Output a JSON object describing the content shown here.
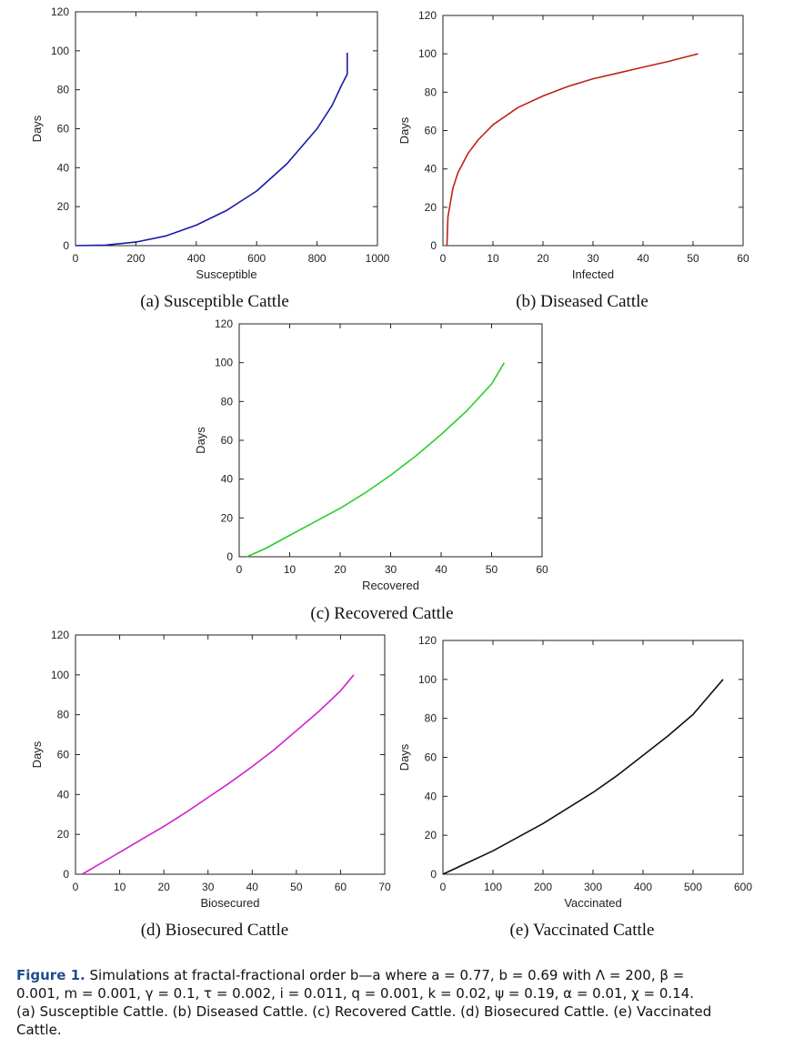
{
  "chart_data": [
    {
      "id": "a",
      "type": "line",
      "xlabel": "Susceptible",
      "ylabel": "Days",
      "xlim": [
        0,
        1000
      ],
      "ylim": [
        0,
        120
      ],
      "xticks": [
        0,
        200,
        400,
        600,
        800,
        1000
      ],
      "yticks": [
        0,
        20,
        40,
        60,
        80,
        100,
        120
      ],
      "color": "#1a1aa8",
      "series": [
        {
          "name": "Susceptible",
          "x": [
            0,
            100,
            200,
            300,
            400,
            500,
            600,
            700,
            800,
            850,
            880,
            900,
            900
          ],
          "y": [
            0,
            0.3,
            1.8,
            5,
            10.5,
            18,
            28,
            42,
            60,
            72,
            82,
            88,
            99
          ]
        }
      ],
      "caption": "(a) Susceptible Cattle"
    },
    {
      "id": "b",
      "type": "line",
      "xlabel": "Infected",
      "ylabel": "Days",
      "xlim": [
        0,
        60
      ],
      "ylim": [
        0,
        120
      ],
      "xticks": [
        0,
        10,
        20,
        30,
        40,
        50,
        60
      ],
      "yticks": [
        0,
        20,
        40,
        60,
        80,
        100,
        120
      ],
      "color": "#c0201a",
      "series": [
        {
          "name": "Infected",
          "x": [
            0.8,
            1,
            2,
            3,
            5,
            7,
            10,
            15,
            20,
            25,
            30,
            35,
            40,
            45,
            51
          ],
          "y": [
            0,
            15,
            30,
            38,
            48,
            55,
            63,
            72,
            78,
            83,
            87,
            90,
            93,
            96,
            100
          ]
        }
      ],
      "caption": "(b) Diseased Cattle"
    },
    {
      "id": "c",
      "type": "line",
      "xlabel": "Recovered",
      "ylabel": "Days",
      "xlim": [
        0,
        60
      ],
      "ylim": [
        0,
        120
      ],
      "xticks": [
        0,
        10,
        20,
        30,
        40,
        50,
        60
      ],
      "yticks": [
        0,
        20,
        40,
        60,
        80,
        100,
        120
      ],
      "color": "#2ecc2e",
      "series": [
        {
          "name": "Recovered",
          "x": [
            1.5,
            5,
            10,
            15,
            20,
            25,
            30,
            35,
            40,
            45,
            50,
            52.5
          ],
          "y": [
            0,
            4,
            11,
            18,
            25,
            33,
            42,
            52,
            63,
            75,
            89,
            100
          ]
        }
      ],
      "caption": "(c) Recovered Cattle"
    },
    {
      "id": "d",
      "type": "line",
      "xlabel": "Biosecured",
      "ylabel": "Days",
      "xlim": [
        0,
        70
      ],
      "ylim": [
        0,
        120
      ],
      "xticks": [
        0,
        10,
        20,
        30,
        40,
        50,
        60,
        70
      ],
      "yticks": [
        0,
        20,
        40,
        60,
        80,
        100,
        120
      ],
      "color": "#cc22cc",
      "series": [
        {
          "name": "Biosecured",
          "x": [
            1.5,
            5,
            10,
            15,
            20,
            25,
            30,
            35,
            40,
            45,
            50,
            55,
            60,
            63
          ],
          "y": [
            0,
            4.5,
            11,
            17.5,
            24,
            31,
            38.5,
            46,
            54,
            62.5,
            72,
            81.5,
            92,
            100
          ]
        }
      ],
      "caption": "(d) Biosecured Cattle"
    },
    {
      "id": "e",
      "type": "line",
      "xlabel": "Vaccinated",
      "ylabel": "Days",
      "xlim": [
        0,
        600
      ],
      "ylim": [
        0,
        120
      ],
      "xticks": [
        0,
        100,
        200,
        300,
        400,
        500,
        600
      ],
      "yticks": [
        0,
        20,
        40,
        60,
        80,
        100,
        120
      ],
      "color": "#111111",
      "series": [
        {
          "name": "Vaccinated",
          "x": [
            0,
            50,
            100,
            150,
            200,
            250,
            300,
            350,
            400,
            450,
            500,
            560
          ],
          "y": [
            0,
            6,
            12,
            19,
            26,
            34,
            42,
            51,
            61,
            71,
            82,
            100
          ]
        }
      ],
      "caption": "(e) Vaccinated Cattle"
    }
  ],
  "figure_caption": {
    "label": "Figure 1.",
    "line1": "Simulations at fractal-fractional order b—a where a = 0.77, b = 0.69 with Λ = 200, β =",
    "line2": "0.001, m = 0.001, γ = 0.1, τ = 0.002, i = 0.011, q = 0.001, k = 0.02, ψ = 0.19, α = 0.01, χ = 0.14.",
    "line3": "(a) Susceptible Cattle. (b) Diseased Cattle. (c) Recovered Cattle. (d) Biosecured Cattle. (e) Vaccinated",
    "line4": "Cattle."
  }
}
